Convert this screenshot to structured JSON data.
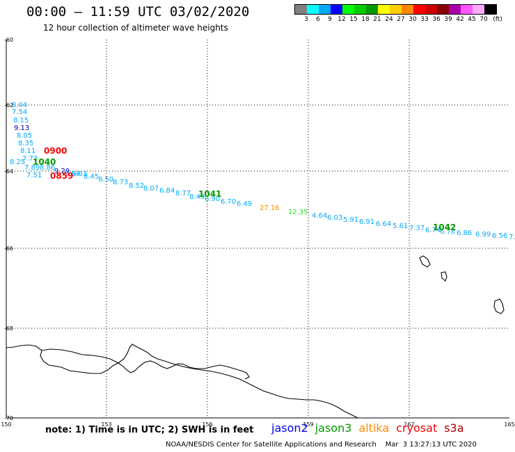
{
  "header": {
    "title": "00:00 – 11:59 UTC 03/02/2020",
    "subtitle": "12 hour collection of altimeter wave heights"
  },
  "colorbar": {
    "colors": [
      "#808080",
      "#00ffff",
      "#00aaff",
      "#0000ff",
      "#00ff00",
      "#00cc00",
      "#009900",
      "#ffff00",
      "#ffcc00",
      "#ff8800",
      "#ff0000",
      "#cc0000",
      "#880000",
      "#aa00aa",
      "#ff55ff",
      "#ffaaff",
      "#000000"
    ],
    "labels": [
      "3",
      "6",
      "9",
      "12",
      "15",
      "18",
      "21",
      "24",
      "27",
      "30",
      "33",
      "36",
      "39",
      "42",
      "45",
      "70"
    ],
    "unit": "(ft)"
  },
  "map": {
    "lat_labels": [
      "-60",
      "-62",
      "-64",
      "-66",
      "-68",
      "-70"
    ],
    "lon_labels": [
      "150",
      "153",
      "156",
      "159",
      "162",
      "165"
    ],
    "time_labels": [
      {
        "text": "0900",
        "color": "#ff0000"
      },
      {
        "text": "1040",
        "color": "#009900"
      },
      {
        "text": "0859",
        "color": "#ff0000"
      },
      {
        "text": "1041",
        "color": "#009900"
      },
      {
        "text": "1042",
        "color": "#009900"
      }
    ],
    "wave_heights": [
      {
        "text": "8.04",
        "color": "#00aaff"
      },
      {
        "text": "7.54",
        "color": "#00aaff"
      },
      {
        "text": "8.15",
        "color": "#00aaff"
      },
      {
        "text": "9.13",
        "color": "#0000aa"
      },
      {
        "text": "8.05",
        "color": "#00aaff"
      },
      {
        "text": "8.35",
        "color": "#00aaff"
      },
      {
        "text": "8.11",
        "color": "#00aaff"
      },
      {
        "text": "7.77",
        "color": "#00aaff"
      },
      {
        "text": "8.25",
        "color": "#00aaff"
      },
      {
        "text": "7.89",
        "color": "#00aaff"
      },
      {
        "text": "8.86",
        "color": "#00aaff"
      },
      {
        "text": "9.29",
        "color": "#0000aa"
      },
      {
        "text": "7.51",
        "color": "#00aaff"
      },
      {
        "text": "8.64",
        "color": "#00aaff"
      },
      {
        "text": "8.63",
        "color": "#00aaff"
      },
      {
        "text": "8.45",
        "color": "#00aaff"
      },
      {
        "text": "8.50",
        "color": "#00aaff"
      },
      {
        "text": "8.73",
        "color": "#00aaff"
      },
      {
        "text": "8.52",
        "color": "#00aaff"
      },
      {
        "text": "8.07",
        "color": "#00aaff"
      },
      {
        "text": "6.84",
        "color": "#00aaff"
      },
      {
        "text": "8.77",
        "color": "#00aaff"
      },
      {
        "text": "8.49",
        "color": "#00aaff"
      },
      {
        "text": "6.90",
        "color": "#00aaff"
      },
      {
        "text": "6.70",
        "color": "#00aaff"
      },
      {
        "text": "6.49",
        "color": "#00aaff"
      },
      {
        "text": "27.16",
        "color": "#ff8800"
      },
      {
        "text": "12.35",
        "color": "#33dd33"
      },
      {
        "text": "4.64",
        "color": "#00aaff"
      },
      {
        "text": "6.03",
        "color": "#00aaff"
      },
      {
        "text": "5.91",
        "color": "#00aaff"
      },
      {
        "text": "6.91",
        "color": "#00aaff"
      },
      {
        "text": "6.64",
        "color": "#00aaff"
      },
      {
        "text": "5.61",
        "color": "#00aaff"
      },
      {
        "text": "7.37",
        "color": "#00aaff"
      },
      {
        "text": "6.74",
        "color": "#00aaff"
      },
      {
        "text": "6.78",
        "color": "#00aaff"
      },
      {
        "text": "6.86",
        "color": "#00aaff"
      },
      {
        "text": "6.99",
        "color": "#00aaff"
      },
      {
        "text": "6.56",
        "color": "#00aaff"
      },
      {
        "text": "7.",
        "color": "#00aaff"
      }
    ]
  },
  "footer": {
    "note": "note:  1) Time is in UTC;  2) SWH is in feet",
    "satellites": [
      {
        "name": "jason2",
        "color": "#0000ee"
      },
      {
        "name": "jason3",
        "color": "#009900"
      },
      {
        "name": "altika",
        "color": "#ff8800"
      },
      {
        "name": "cryosat",
        "color": "#ee0000"
      },
      {
        "name": "s3a",
        "color": "#aa0000"
      }
    ],
    "credit": "NOAA/NESDIS Center for Satellite Applications and Research    Mar  3 13:27:13 UTC 2020"
  }
}
